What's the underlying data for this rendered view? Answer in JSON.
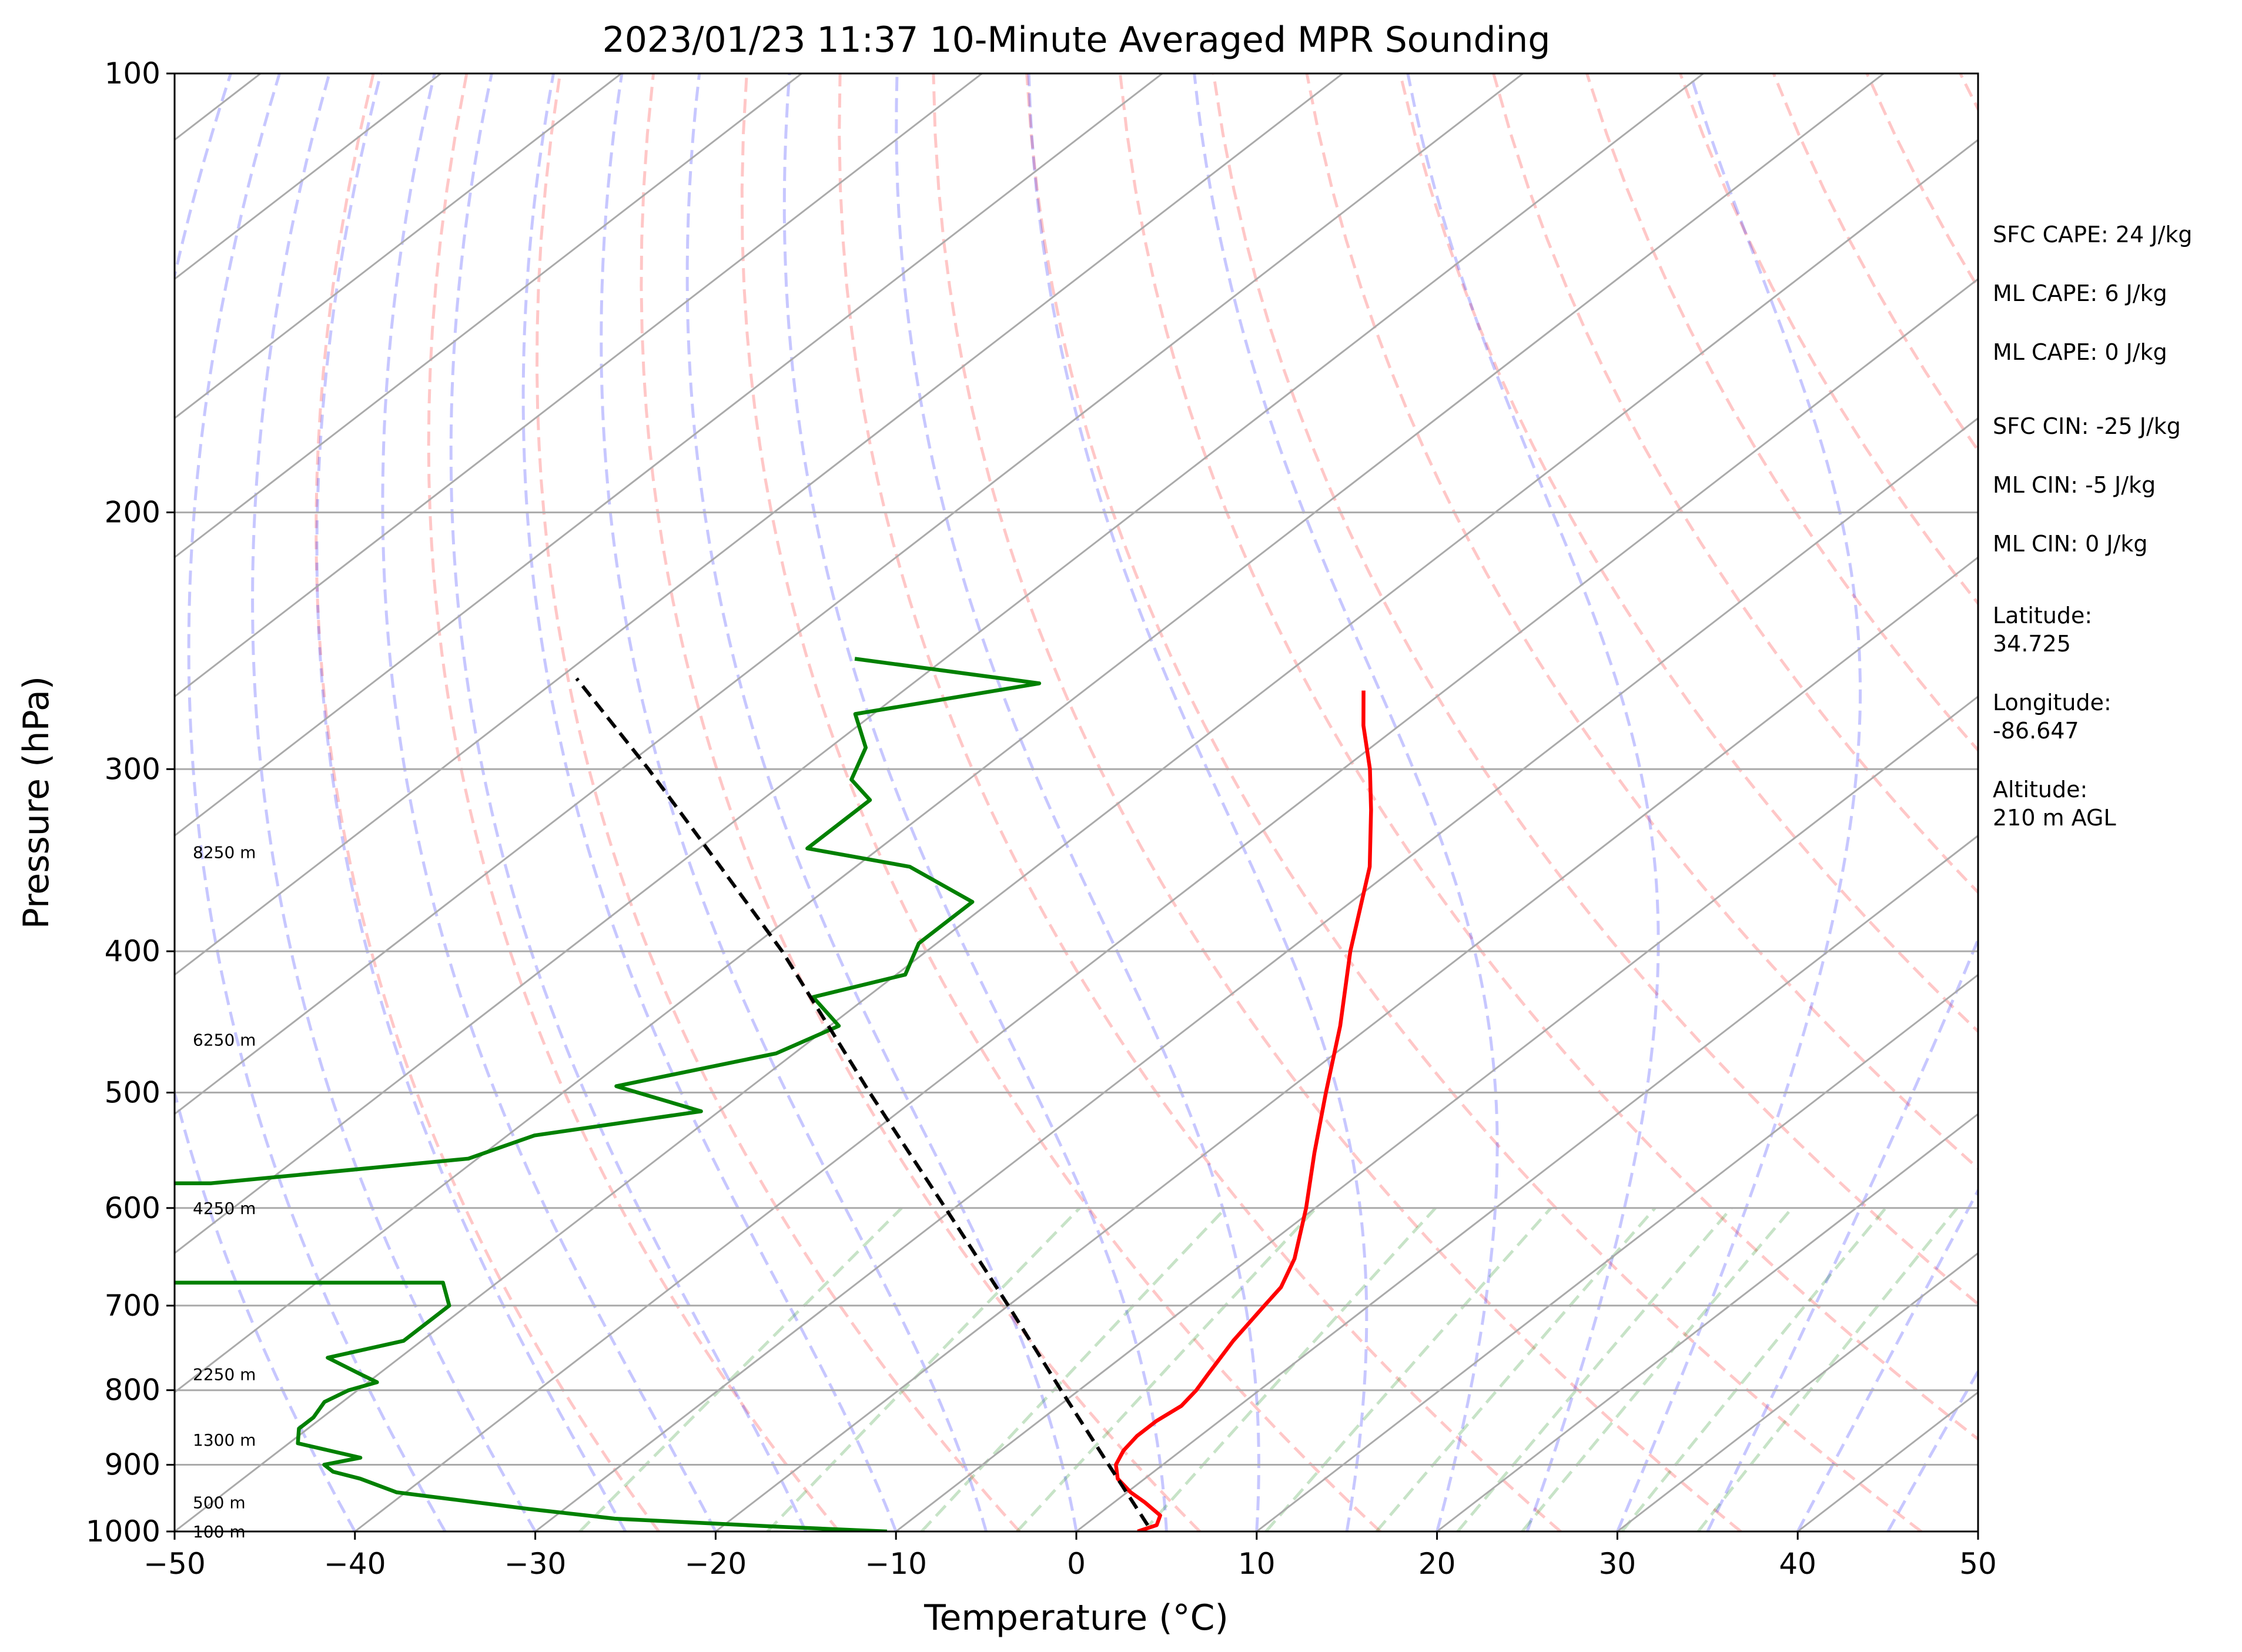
{
  "chart_data": {
    "type": "line",
    "title": "2023/01/23 11:37 10-Minute Averaged MPR Sounding",
    "xlabel": "Temperature (°C)",
    "ylabel": "Pressure (hPa)",
    "xlim": [
      -50,
      50
    ],
    "ylim": [
      1000,
      100
    ],
    "y_scale": "log",
    "skew_slope_degC_per_ln_p": 45.5,
    "x_ticks": [
      "−50",
      "−40",
      "−30",
      "−20",
      "−10",
      "0",
      "10",
      "20",
      "30",
      "40",
      "50"
    ],
    "y_ticks": [
      "100",
      "200",
      "300",
      "400",
      "500",
      "600",
      "700",
      "800",
      "900",
      "1000"
    ],
    "grid": "pressure lines + skewed isotherms",
    "background_lines": {
      "dry_adiabats": "dashed red",
      "moist_adiabats": "dashed blue",
      "mixing_ratio": "dashed green"
    },
    "series": [
      {
        "color": "#ff0000",
        "points": [
          [
            1000,
            3.4
          ],
          [
            990,
            4.0
          ],
          [
            975,
            3.5
          ],
          [
            955,
            1.7
          ],
          [
            940,
            0.2
          ],
          [
            920,
            -1.5
          ],
          [
            900,
            -2.6
          ],
          [
            880,
            -3.2
          ],
          [
            860,
            -3.5
          ],
          [
            840,
            -3.5
          ],
          [
            820,
            -3.2
          ],
          [
            800,
            -3.5
          ],
          [
            780,
            -4.0
          ],
          [
            740,
            -5.0
          ],
          [
            700,
            -5.8
          ],
          [
            680,
            -6.2
          ],
          [
            650,
            -7.5
          ],
          [
            600,
            -10.5
          ],
          [
            550,
            -14.0
          ],
          [
            500,
            -17.7
          ],
          [
            450,
            -21.7
          ],
          [
            400,
            -26.5
          ],
          [
            350,
            -31.5
          ],
          [
            320,
            -35.5
          ],
          [
            300,
            -38.5
          ],
          [
            280,
            -42.0
          ],
          [
            265,
            -44.5
          ]
        ]
      },
      {
        "color": "#008000",
        "points": [
          [
            1000,
            -10.5
          ],
          [
            993,
            -16.5
          ],
          [
            980,
            -26.5
          ],
          [
            965,
            -32.0
          ],
          [
            940,
            -40.5
          ],
          [
            920,
            -43.5
          ],
          [
            910,
            -45.5
          ],
          [
            900,
            -46.5
          ],
          [
            890,
            -45.0
          ],
          [
            870,
            -49.5
          ],
          [
            850,
            -50.5
          ],
          [
            835,
            -50.5
          ],
          [
            815,
            -51.0
          ],
          [
            800,
            -50.5
          ],
          [
            790,
            -49.5
          ],
          [
            780,
            -51.0
          ],
          [
            760,
            -54.0
          ],
          [
            740,
            -51.0
          ],
          [
            720,
            -51.0
          ],
          [
            700,
            -51.0
          ],
          [
            675,
            -53.0
          ],
          [
            675,
            -80
          ],
          [
            577,
            -80
          ],
          [
            577,
            -73.0
          ],
          [
            555,
            -60.5
          ],
          [
            535,
            -58.5
          ],
          [
            515,
            -51.0
          ],
          [
            495,
            -57.5
          ],
          [
            470,
            -51.0
          ],
          [
            450,
            -49.5
          ],
          [
            430,
            -53.0
          ],
          [
            415,
            -49.5
          ],
          [
            395,
            -51.0
          ],
          [
            370,
            -51.0
          ],
          [
            350,
            -57.0
          ],
          [
            340,
            -64.0
          ],
          [
            325,
            -64.0
          ],
          [
            315,
            -64.0
          ],
          [
            305,
            -66.5
          ],
          [
            290,
            -68.0
          ],
          [
            275,
            -71.0
          ],
          [
            262,
            -63.0
          ],
          [
            252,
            -75.0
          ]
        ]
      },
      {
        "color": "#000000",
        "style": "dashed",
        "points": [
          [
            990,
            3.5
          ],
          [
            900,
            -3.0
          ],
          [
            800,
            -11.0
          ],
          [
            700,
            -20.0
          ],
          [
            600,
            -30.5
          ],
          [
            500,
            -43.0
          ],
          [
            400,
            -58.0
          ],
          [
            350,
            -67.5
          ],
          [
            300,
            -78.5
          ],
          [
            260,
            -89.0
          ]
        ]
      }
    ],
    "height_labels": [
      {
        "p": 1000,
        "text": "100 m"
      },
      {
        "p": 955,
        "text": "500 m"
      },
      {
        "p": 865,
        "text": "1300 m"
      },
      {
        "p": 780,
        "text": "2250 m"
      },
      {
        "p": 600,
        "text": "4250 m"
      },
      {
        "p": 460,
        "text": "6250 m"
      },
      {
        "p": 342,
        "text": "8250 m"
      }
    ]
  },
  "stats": [
    "SFC CAPE: 24 J/kg",
    "ML CAPE: 6 J/kg",
    "ML CAPE: 0 J/kg",
    "SFC CIN: -25 J/kg",
    "ML CIN: -5 J/kg",
    "ML CIN: 0 J/kg"
  ],
  "location": {
    "lat_label": "Latitude:",
    "lat_value": "34.725",
    "lon_label": "Longitude:",
    "lon_value": "-86.647",
    "alt_label": "Altitude:",
    "alt_value": "210 m AGL"
  }
}
